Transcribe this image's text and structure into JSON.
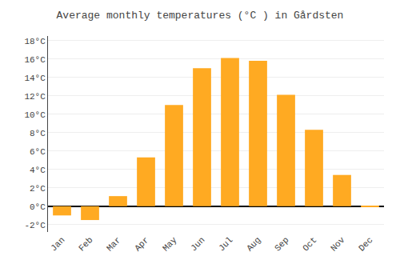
{
  "chart_data": {
    "type": "bar",
    "title": "Average monthly temperatures (°C ) in Gårdsten",
    "categories": [
      "Jan",
      "Feb",
      "Mar",
      "Apr",
      "May",
      "Jun",
      "Jul",
      "Aug",
      "Sep",
      "Oct",
      "Nov",
      "Dec"
    ],
    "values": [
      -1.0,
      -1.5,
      1.1,
      5.3,
      11.0,
      15.0,
      16.1,
      15.8,
      12.1,
      8.3,
      3.4,
      -0.1
    ],
    "color": "#FFAA22",
    "ylim": [
      -2.8,
      18.5
    ],
    "yticks": [
      {
        "value": -2,
        "label": "-2°C"
      },
      {
        "value": 0,
        "label": "0°C"
      },
      {
        "value": 2,
        "label": "2°C"
      },
      {
        "value": 4,
        "label": "4°C"
      },
      {
        "value": 6,
        "label": "6°C"
      },
      {
        "value": 8,
        "label": "8°C"
      },
      {
        "value": 10,
        "label": "10°C"
      },
      {
        "value": 12,
        "label": "12°C"
      },
      {
        "value": 14,
        "label": "14°C"
      },
      {
        "value": 16,
        "label": "16°C"
      },
      {
        "value": 18,
        "label": "18°C"
      }
    ],
    "grid": true
  }
}
